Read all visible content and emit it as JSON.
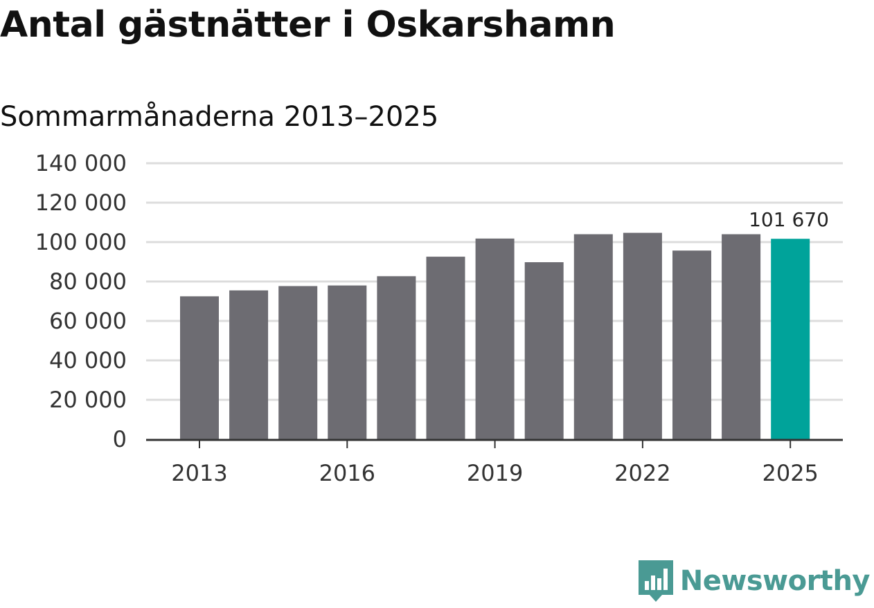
{
  "chart_data": {
    "type": "bar",
    "title": "Antal gästnätter i Oskarshamn",
    "subtitle": "Sommarmånaderna 2013–2025",
    "categories": [
      "2013",
      "2014",
      "2015",
      "2016",
      "2017",
      "2018",
      "2019",
      "2020",
      "2021",
      "2022",
      "2023",
      "2024",
      "2025"
    ],
    "values": [
      72500,
      75500,
      77700,
      78000,
      82700,
      92600,
      101800,
      89800,
      104000,
      104700,
      95700,
      104000,
      101670
    ],
    "ylim": [
      0,
      140000
    ],
    "yticks": [
      0,
      20000,
      40000,
      60000,
      80000,
      100000,
      120000,
      140000
    ],
    "ytick_labels": [
      "0",
      "20 000",
      "40 000",
      "60 000",
      "80 000",
      "100 000",
      "120 000",
      "140 000"
    ],
    "xtick_labels": [
      "2013",
      "2016",
      "2019",
      "2022",
      "2025"
    ],
    "data_labels": [
      {
        "category": "2025",
        "text": "101 670"
      }
    ],
    "highlight_category": "2025",
    "colors": {
      "bar": "#6d6c72",
      "highlight": "#00a39a",
      "grid": "#dcdcdc",
      "axis": "#333333"
    },
    "grid": true,
    "legend": "none"
  },
  "brand": {
    "name": "Newsworthy",
    "icon": "newsworthy-logo-icon"
  }
}
